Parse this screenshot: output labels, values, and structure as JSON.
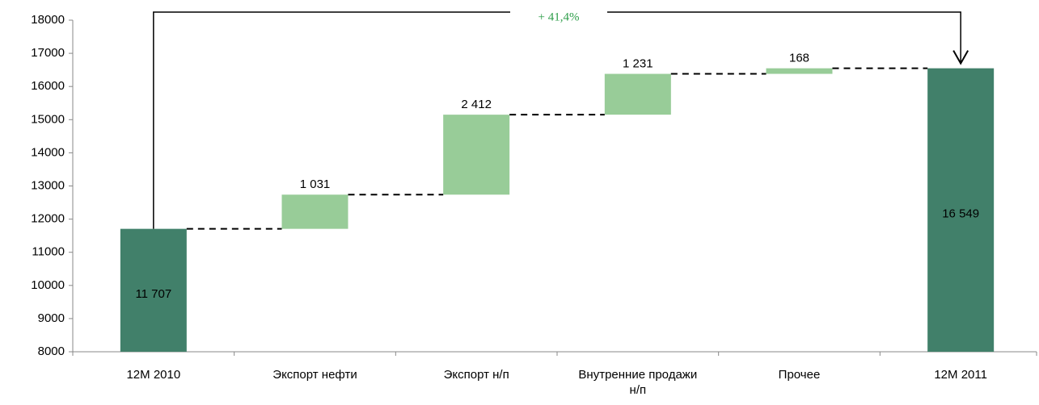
{
  "chart_data": {
    "type": "waterfall",
    "categories": [
      "12M 2010",
      "Экспорт нефти",
      "Экспорт н/п",
      "Внутренние продажи н/п",
      "Прочее",
      "12M 2011"
    ],
    "values": [
      11707,
      1031,
      2412,
      1231,
      168,
      16549
    ],
    "value_labels": [
      "11 707",
      "1 031",
      "2 412",
      "1 231",
      "168",
      "16 549"
    ],
    "measure": [
      "total",
      "relative",
      "relative",
      "relative",
      "relative",
      "total"
    ],
    "colors": [
      "#41806a",
      "#98cc98",
      "#98cc98",
      "#98cc98",
      "#98cc98",
      "#41806a"
    ],
    "annotation": "+ 41,4%",
    "annotation_color": "#2e9e4a",
    "ylim": [
      8000,
      18000
    ],
    "yticks": [
      8000,
      9000,
      10000,
      11000,
      12000,
      13000,
      14000,
      15000,
      16000,
      17000,
      18000
    ]
  }
}
